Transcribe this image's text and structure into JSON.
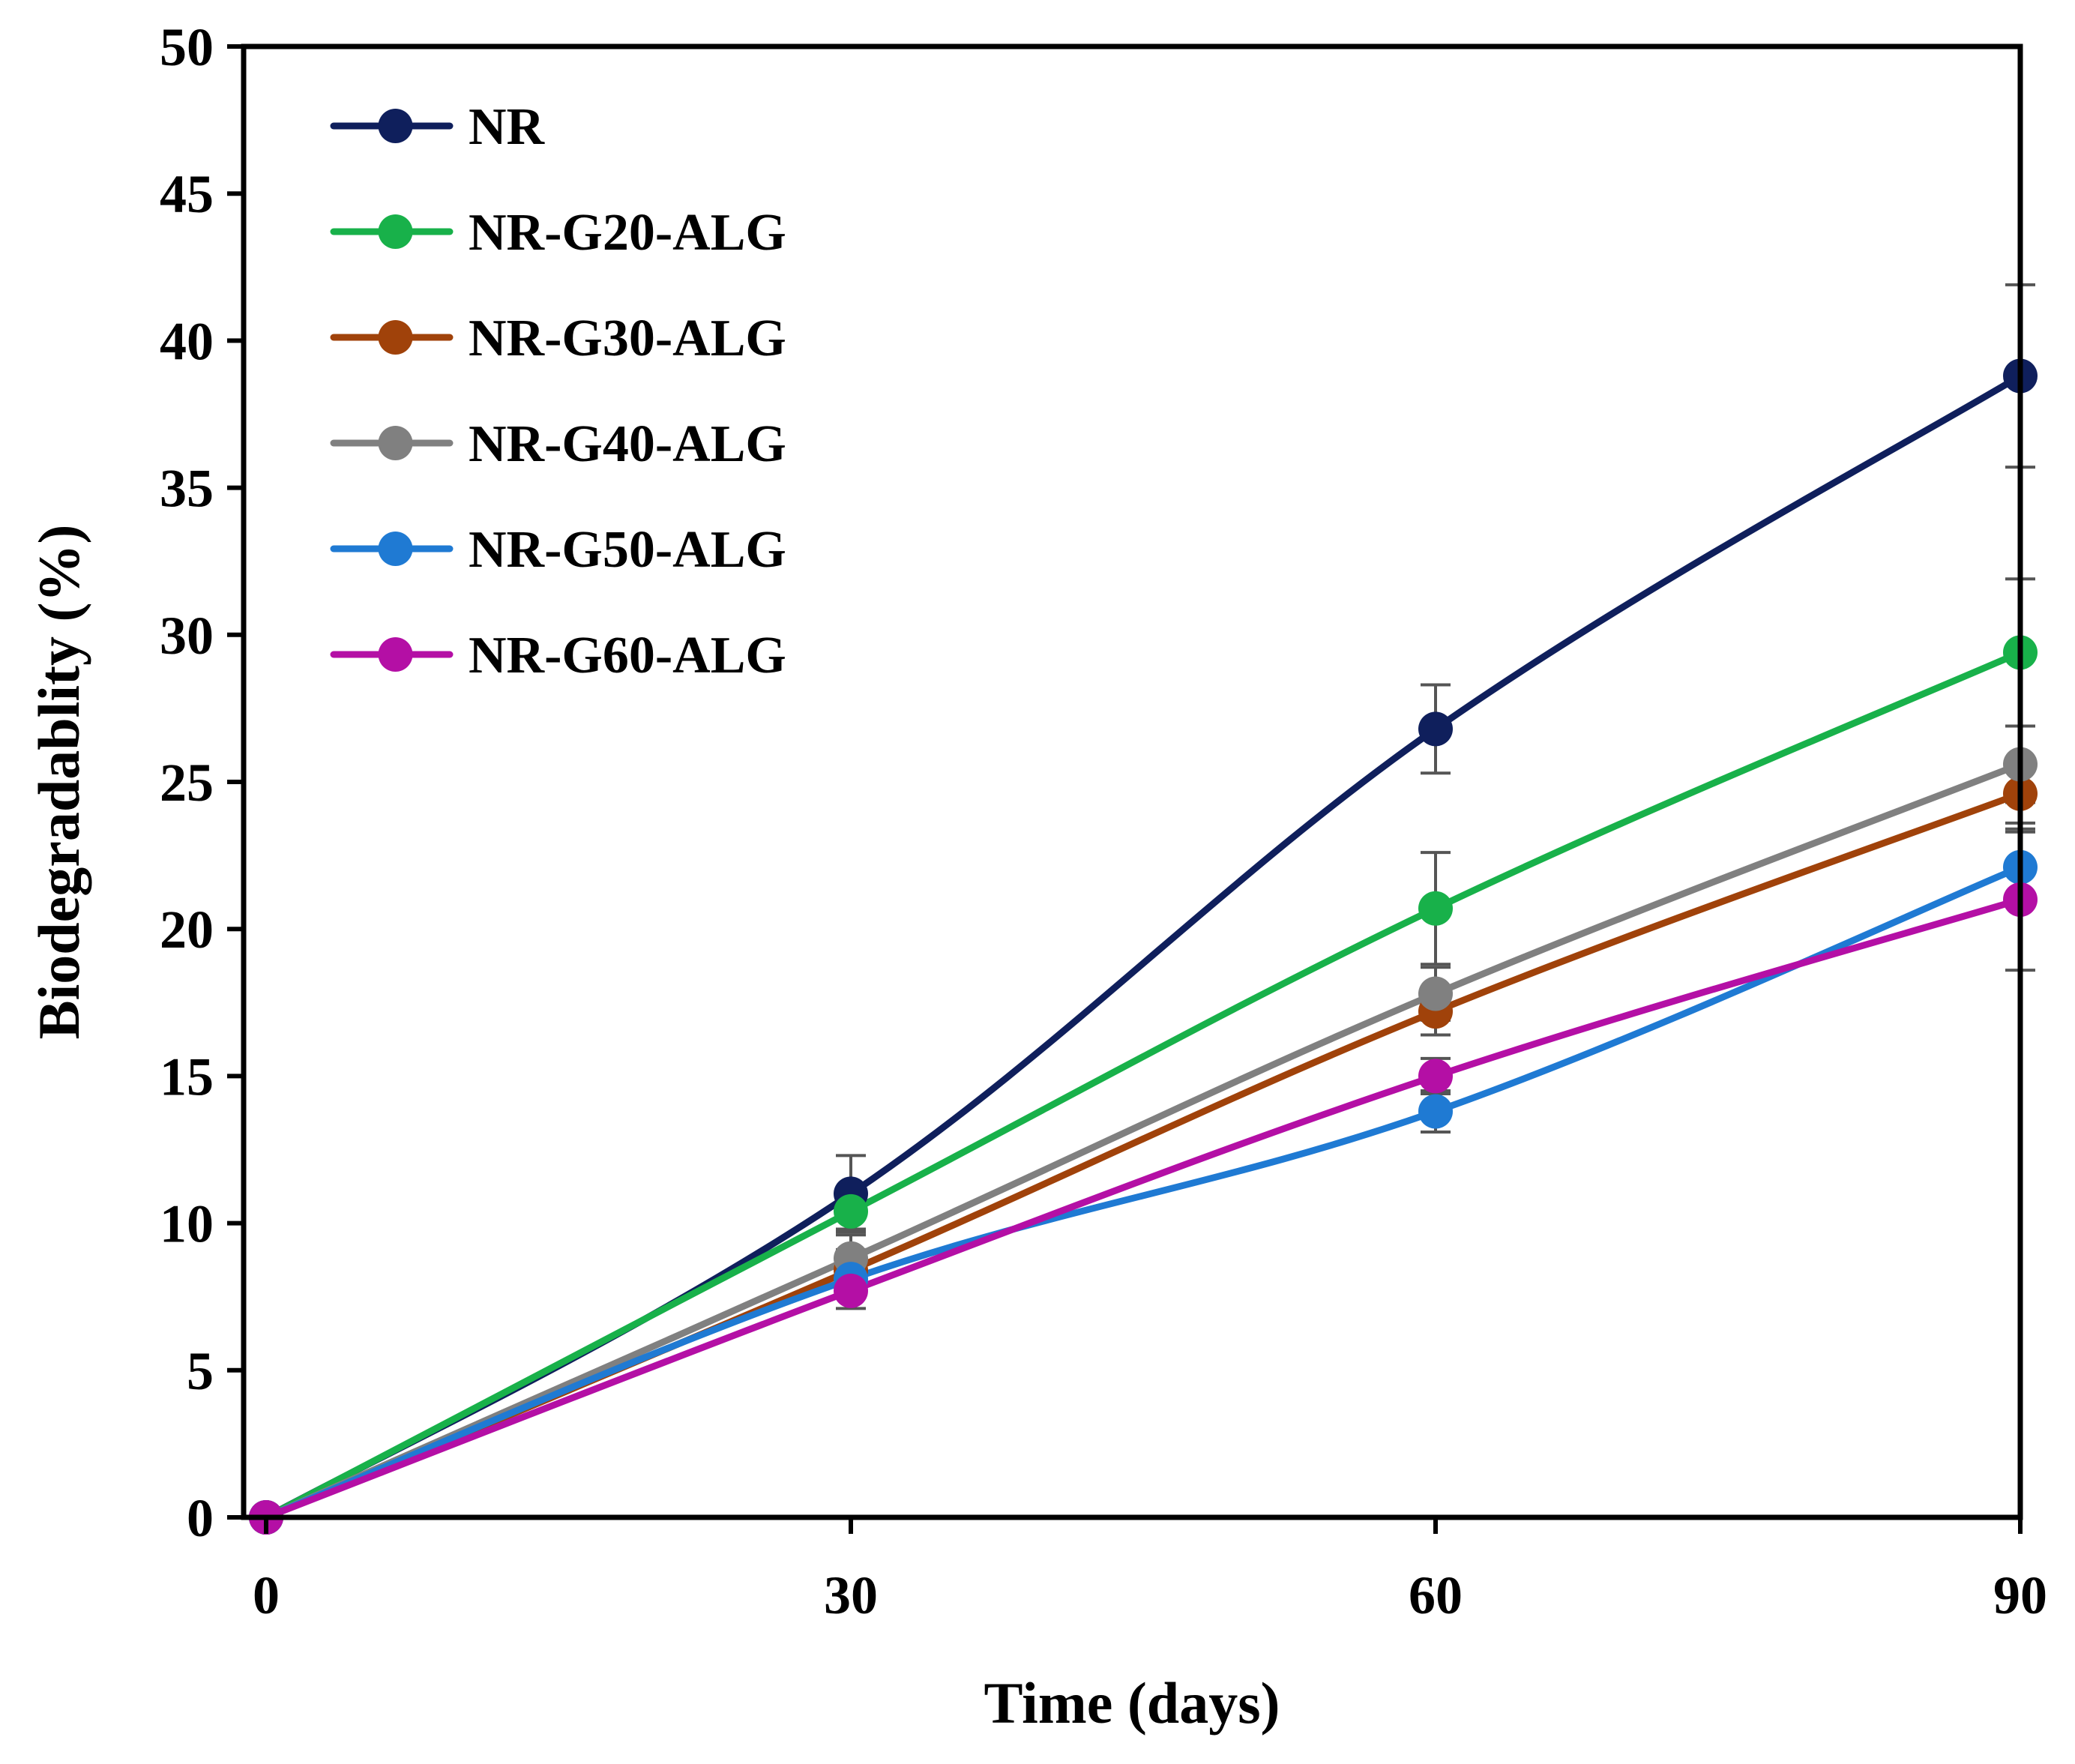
{
  "chart_data": {
    "type": "line",
    "title": "",
    "xlabel": "Time (days)",
    "ylabel": "Biodegradablity (%)",
    "x": [
      0,
      30,
      60,
      90
    ],
    "xticks": [
      "0",
      "30",
      "60",
      "90"
    ],
    "yticks": [
      "0",
      "5",
      "10",
      "15",
      "20",
      "25",
      "30",
      "35",
      "40",
      "45",
      "50"
    ],
    "xlim": [
      0,
      90
    ],
    "ylim": [
      0,
      50
    ],
    "grid": false,
    "legend_position": "top-left",
    "series": [
      {
        "name": "NR",
        "color": "#0f1f5c",
        "values": [
          0,
          11.0,
          26.8,
          38.8
        ],
        "errors": [
          0,
          1.3,
          1.5,
          3.1
        ]
      },
      {
        "name": "NR-G20-ALG",
        "color": "#18b14a",
        "values": [
          0,
          10.4,
          20.7,
          29.4
        ],
        "errors": [
          0,
          0.6,
          1.9,
          2.5
        ]
      },
      {
        "name": "NR-G30-ALG",
        "color": "#a0420a",
        "values": [
          0,
          8.4,
          17.2,
          24.6
        ],
        "errors": [
          0,
          0.7,
          0.8,
          1.0
        ]
      },
      {
        "name": "NR-G40-ALG",
        "color": "#808080",
        "values": [
          0,
          8.8,
          17.8,
          25.6
        ],
        "errors": [
          0,
          0.8,
          0.9,
          1.3
        ]
      },
      {
        "name": "NR-G50-ALG",
        "color": "#1f7ad3",
        "values": [
          0,
          8.1,
          13.8,
          22.1
        ],
        "errors": [
          0,
          0.6,
          0.7,
          1.2
        ]
      },
      {
        "name": "NR-G60-ALG",
        "color": "#b40fa5",
        "values": [
          0,
          7.7,
          15.0,
          21.0
        ],
        "errors": [
          0,
          0.6,
          0.6,
          2.4
        ]
      }
    ]
  }
}
